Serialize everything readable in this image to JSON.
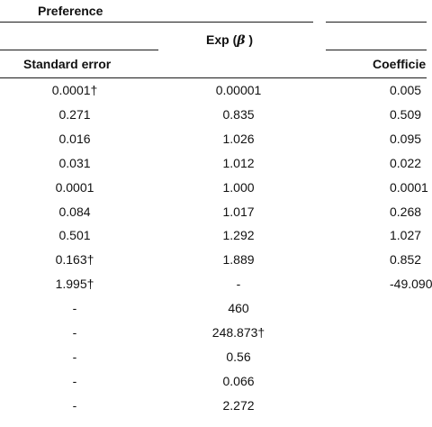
{
  "headers": {
    "group": "Preference",
    "exp_beta_prefix": "Exp (",
    "exp_beta_symbol": "β",
    "exp_beta_suffix": " )",
    "std_error": "Standard error",
    "coefficient": "Coefficie"
  },
  "rows": [
    {
      "std_error": "0.0001†",
      "exp_beta": "0.00001",
      "coefficient": "0.005"
    },
    {
      "std_error": "0.271",
      "exp_beta": "0.835",
      "coefficient": "0.509"
    },
    {
      "std_error": "0.016",
      "exp_beta": "1.026",
      "coefficient": "0.095"
    },
    {
      "std_error": "0.031",
      "exp_beta": "1.012",
      "coefficient": "0.022"
    },
    {
      "std_error": "0.0001",
      "exp_beta": "1.000",
      "coefficient": "0.0001"
    },
    {
      "std_error": "0.084",
      "exp_beta": "1.017",
      "coefficient": "0.268"
    },
    {
      "std_error": "0.501",
      "exp_beta": "1.292",
      "coefficient": "1.027"
    },
    {
      "std_error": "0.163†",
      "exp_beta": "1.889",
      "coefficient": "0.852"
    },
    {
      "std_error": "1.995†",
      "exp_beta": "-",
      "coefficient": "-49.090"
    },
    {
      "std_error": "-",
      "exp_beta": "460",
      "coefficient": ""
    },
    {
      "std_error": "-",
      "exp_beta": "248.873†",
      "coefficient": ""
    },
    {
      "std_error": "-",
      "exp_beta": "0.56",
      "coefficient": ""
    },
    {
      "std_error": "-",
      "exp_beta": "0.066",
      "coefficient": ""
    },
    {
      "std_error": "-",
      "exp_beta": "2.272",
      "coefficient": ""
    }
  ]
}
